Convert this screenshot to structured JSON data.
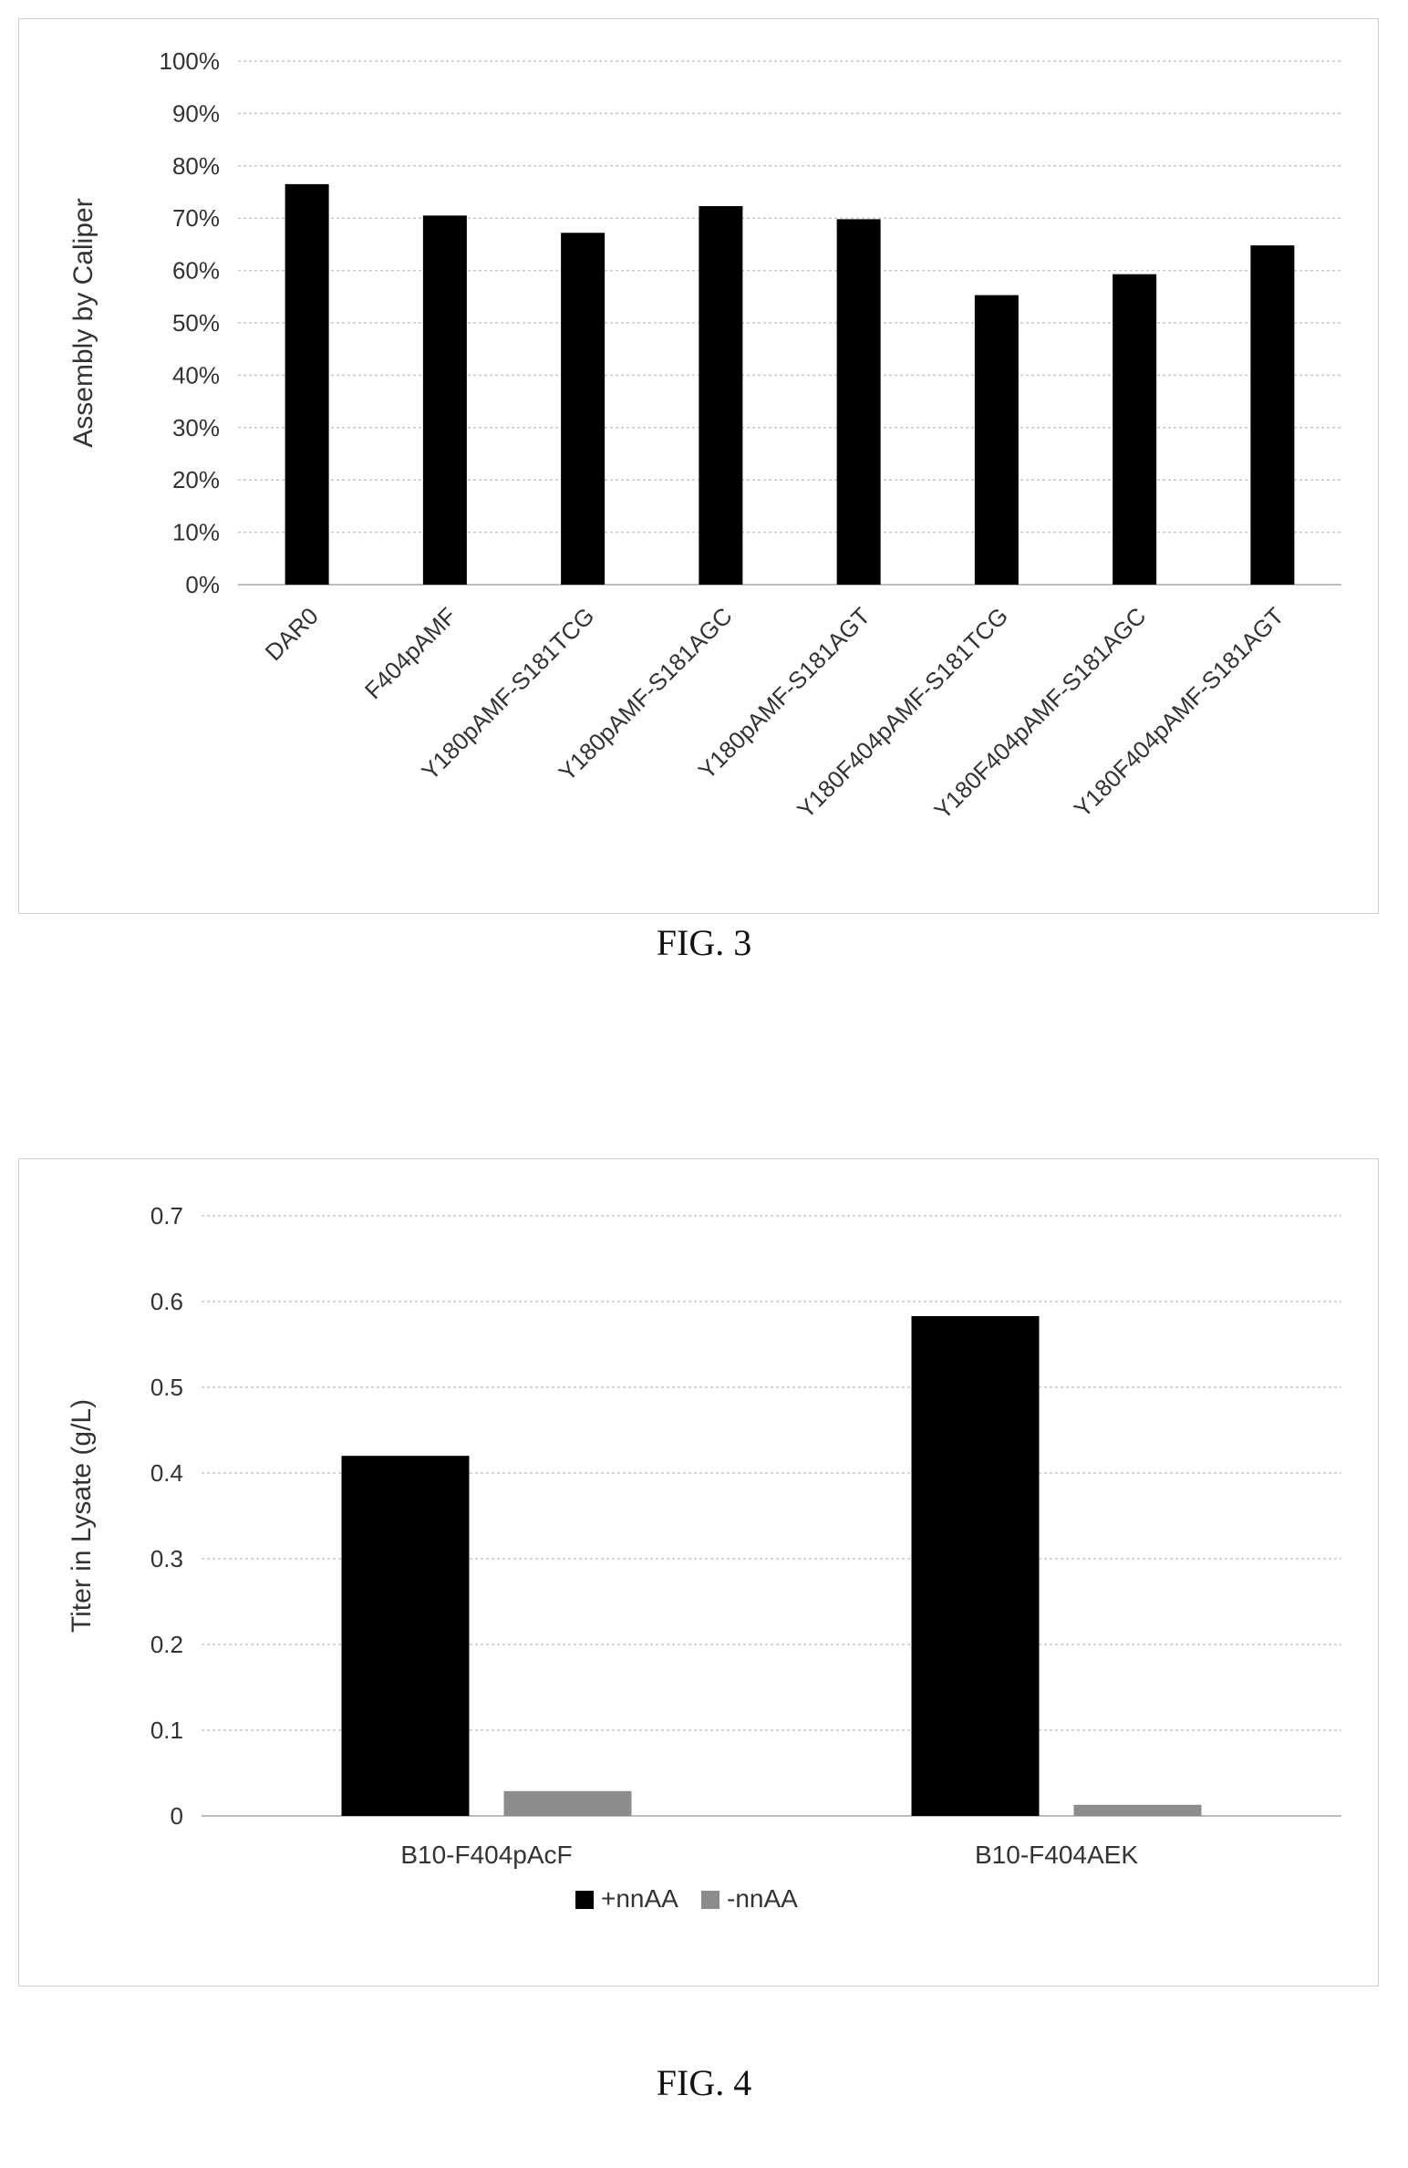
{
  "chart_data": [
    {
      "type": "bar",
      "caption": "FIG. 3",
      "ylabel": "Assembly by Caliper",
      "ylim": [
        0,
        1
      ],
      "yticks": [
        0,
        0.1,
        0.2,
        0.3,
        0.4,
        0.5,
        0.6,
        0.7,
        0.8,
        0.9,
        1.0
      ],
      "yticklabels": [
        "0%",
        "10%",
        "20%",
        "30%",
        "40%",
        "50%",
        "60%",
        "70%",
        "80%",
        "90%",
        "100%"
      ],
      "grid": true,
      "categories": [
        "DAR0",
        "F404pAMF",
        "Y180pAMF-S181TCG",
        "Y180pAMF-S181AGC",
        "Y180pAMF-S181AGT",
        "Y180F404pAMF-S181TCG",
        "Y180F404pAMF-S181AGC",
        "Y180F404pAMF-S181AGT"
      ],
      "series": [
        {
          "values": [
            0.765,
            0.705,
            0.672,
            0.723,
            0.698,
            0.553,
            0.593,
            0.648
          ],
          "color": "#000000"
        }
      ]
    },
    {
      "type": "bar",
      "caption": "FIG. 4",
      "ylabel": "Titer in Lysate (g/L)",
      "ylim": [
        0,
        0.7
      ],
      "yticks": [
        0,
        0.1,
        0.2,
        0.3,
        0.4,
        0.5,
        0.6,
        0.7
      ],
      "yticklabels": [
        "0",
        "0.1",
        "0.2",
        "0.3",
        "0.4",
        "0.5",
        "0.6",
        "0.7"
      ],
      "grid": true,
      "legend": "bottom",
      "categories": [
        "B10-F404pAcF",
        "B10-F404AEK"
      ],
      "series": [
        {
          "name": "+nnAA",
          "values": [
            0.42,
            0.583
          ],
          "color": "#000000"
        },
        {
          "name": "-nnAA",
          "values": [
            0.029,
            0.013
          ],
          "color": "#8c8c8c"
        }
      ]
    }
  ]
}
